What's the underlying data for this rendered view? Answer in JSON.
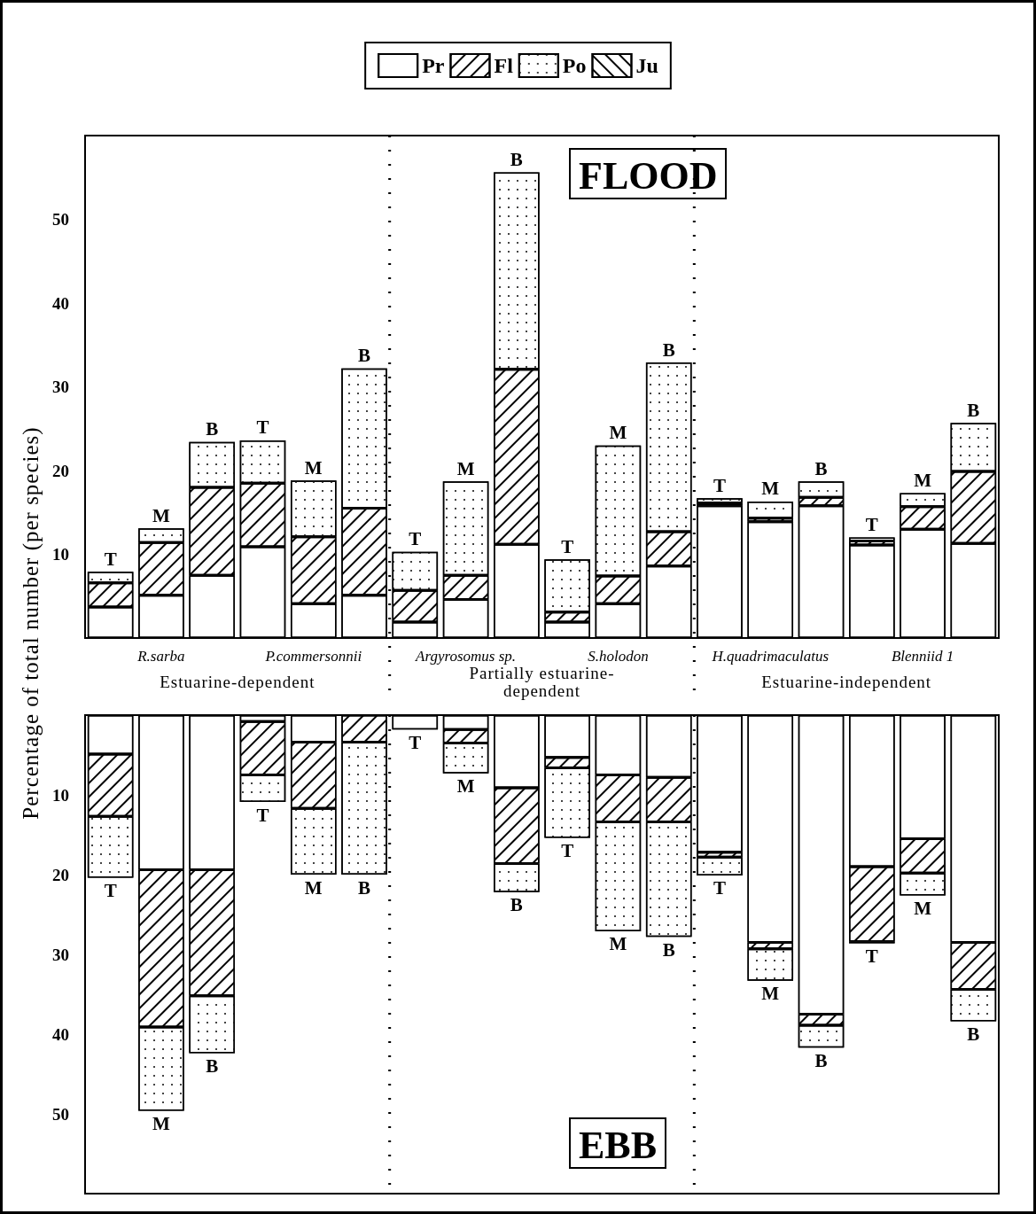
{
  "chart_data": [
    {
      "type": "bar",
      "title": "FLOOD",
      "ylabel": "Percentage of total number (per species)",
      "stacked": true,
      "legend": "top",
      "tick_labels": "xy",
      "categories": [
        null,
        "R.sarba",
        null,
        null,
        "P.commersonnii",
        null,
        null,
        "Argyrosomus sp.",
        null,
        null,
        "S.holodon",
        null,
        null,
        "H.quadrimaculatus",
        null,
        null,
        "Blenniid 1",
        null
      ],
      "ylim": [
        0,
        60
      ],
      "yticks": [
        10,
        20,
        30,
        40,
        50
      ],
      "annotations": [
        "Estuarine-dependent",
        "Partially estuarine-dependent",
        "Estuarine-independent"
      ],
      "series": [
        {
          "name": "Pr",
          "color": "#ffffff",
          "values": [
            3.7,
            5.1,
            7.5,
            10.9,
            4.1,
            5.1,
            1.9,
            4.6,
            11.2,
            1.9,
            4.1,
            8.6,
            15.8,
            13.9,
            15.8,
            11.1,
            13.0,
            11.3
          ]
        },
        {
          "name": "Fl",
          "color": "#ffffff",
          "values": [
            2.9,
            6.3,
            10.5,
            7.6,
            8.0,
            10.4,
            3.8,
            2.9,
            20.9,
            1.2,
            3.3,
            4.1,
            0.3,
            0.4,
            1.0,
            0.5,
            2.7,
            8.6
          ]
        },
        {
          "name": "Po",
          "color": "#ffffff",
          "values": [
            1.3,
            1.7,
            5.4,
            5.1,
            6.7,
            16.7,
            4.6,
            11.2,
            23.5,
            6.3,
            15.6,
            20.2,
            0.6,
            2.0,
            1.9,
            0.4,
            1.6,
            5.8
          ],
          "value_labels": [
            "T",
            "M",
            "B",
            "T",
            "M",
            "B",
            "T",
            "M",
            "B",
            "T",
            "M",
            "B",
            "T",
            "M",
            "B",
            "T",
            "M",
            "B"
          ]
        },
        {
          "name": "Ju",
          "color": "#ffffff",
          "values": [
            0,
            0,
            0,
            0,
            0,
            0,
            0,
            0,
            0,
            0,
            0,
            0,
            0,
            0,
            0,
            0,
            0,
            0
          ]
        }
      ]
    },
    {
      "type": "bar",
      "title": "EBB",
      "stacked": true,
      "categories": [
        null,
        null,
        null,
        null,
        null,
        null,
        null,
        null,
        null,
        null,
        null,
        null,
        null,
        null,
        null,
        null,
        null,
        null
      ],
      "ylim": [
        60,
        0
      ],
      "yticks": [
        10,
        20,
        30,
        40,
        50
      ],
      "series": [
        {
          "color": "#ffffff",
          "values": [
            4.9,
            19.4,
            19.4,
            0.8,
            3.4,
            0,
            1.8,
            1.8,
            9.1,
            5.3,
            7.5,
            7.8,
            17.2,
            28.5,
            37.5,
            19.0,
            15.5,
            28.5
          ]
        },
        {
          "color": "#ffffff",
          "values": [
            7.8,
            19.7,
            15.8,
            6.7,
            8.3,
            3.4,
            0,
            1.7,
            9.5,
            1.3,
            5.9,
            5.6,
            0.6,
            0.8,
            1.4,
            9.4,
            4.3,
            5.9
          ]
        },
        {
          "color": "#ffffff",
          "values": [
            7.7,
            10.5,
            7.2,
            3.4,
            8.3,
            16.6,
            0,
            3.8,
            3.6,
            8.8,
            13.7,
            14.4,
            2.3,
            4.0,
            2.8,
            0.2,
            2.8,
            4.0
          ],
          "value_labels": [
            "T",
            "M",
            "B",
            "T",
            "M",
            "B",
            "T",
            "M",
            "B",
            "T",
            "M",
            "B",
            "T",
            "M",
            "B",
            "T",
            "M",
            "B"
          ]
        },
        {
          "color": "#ffffff",
          "values": [
            0,
            0,
            0,
            0,
            0,
            0,
            0,
            0,
            0,
            0,
            0,
            0,
            0,
            0,
            0,
            0,
            0,
            0
          ]
        }
      ]
    }
  ]
}
